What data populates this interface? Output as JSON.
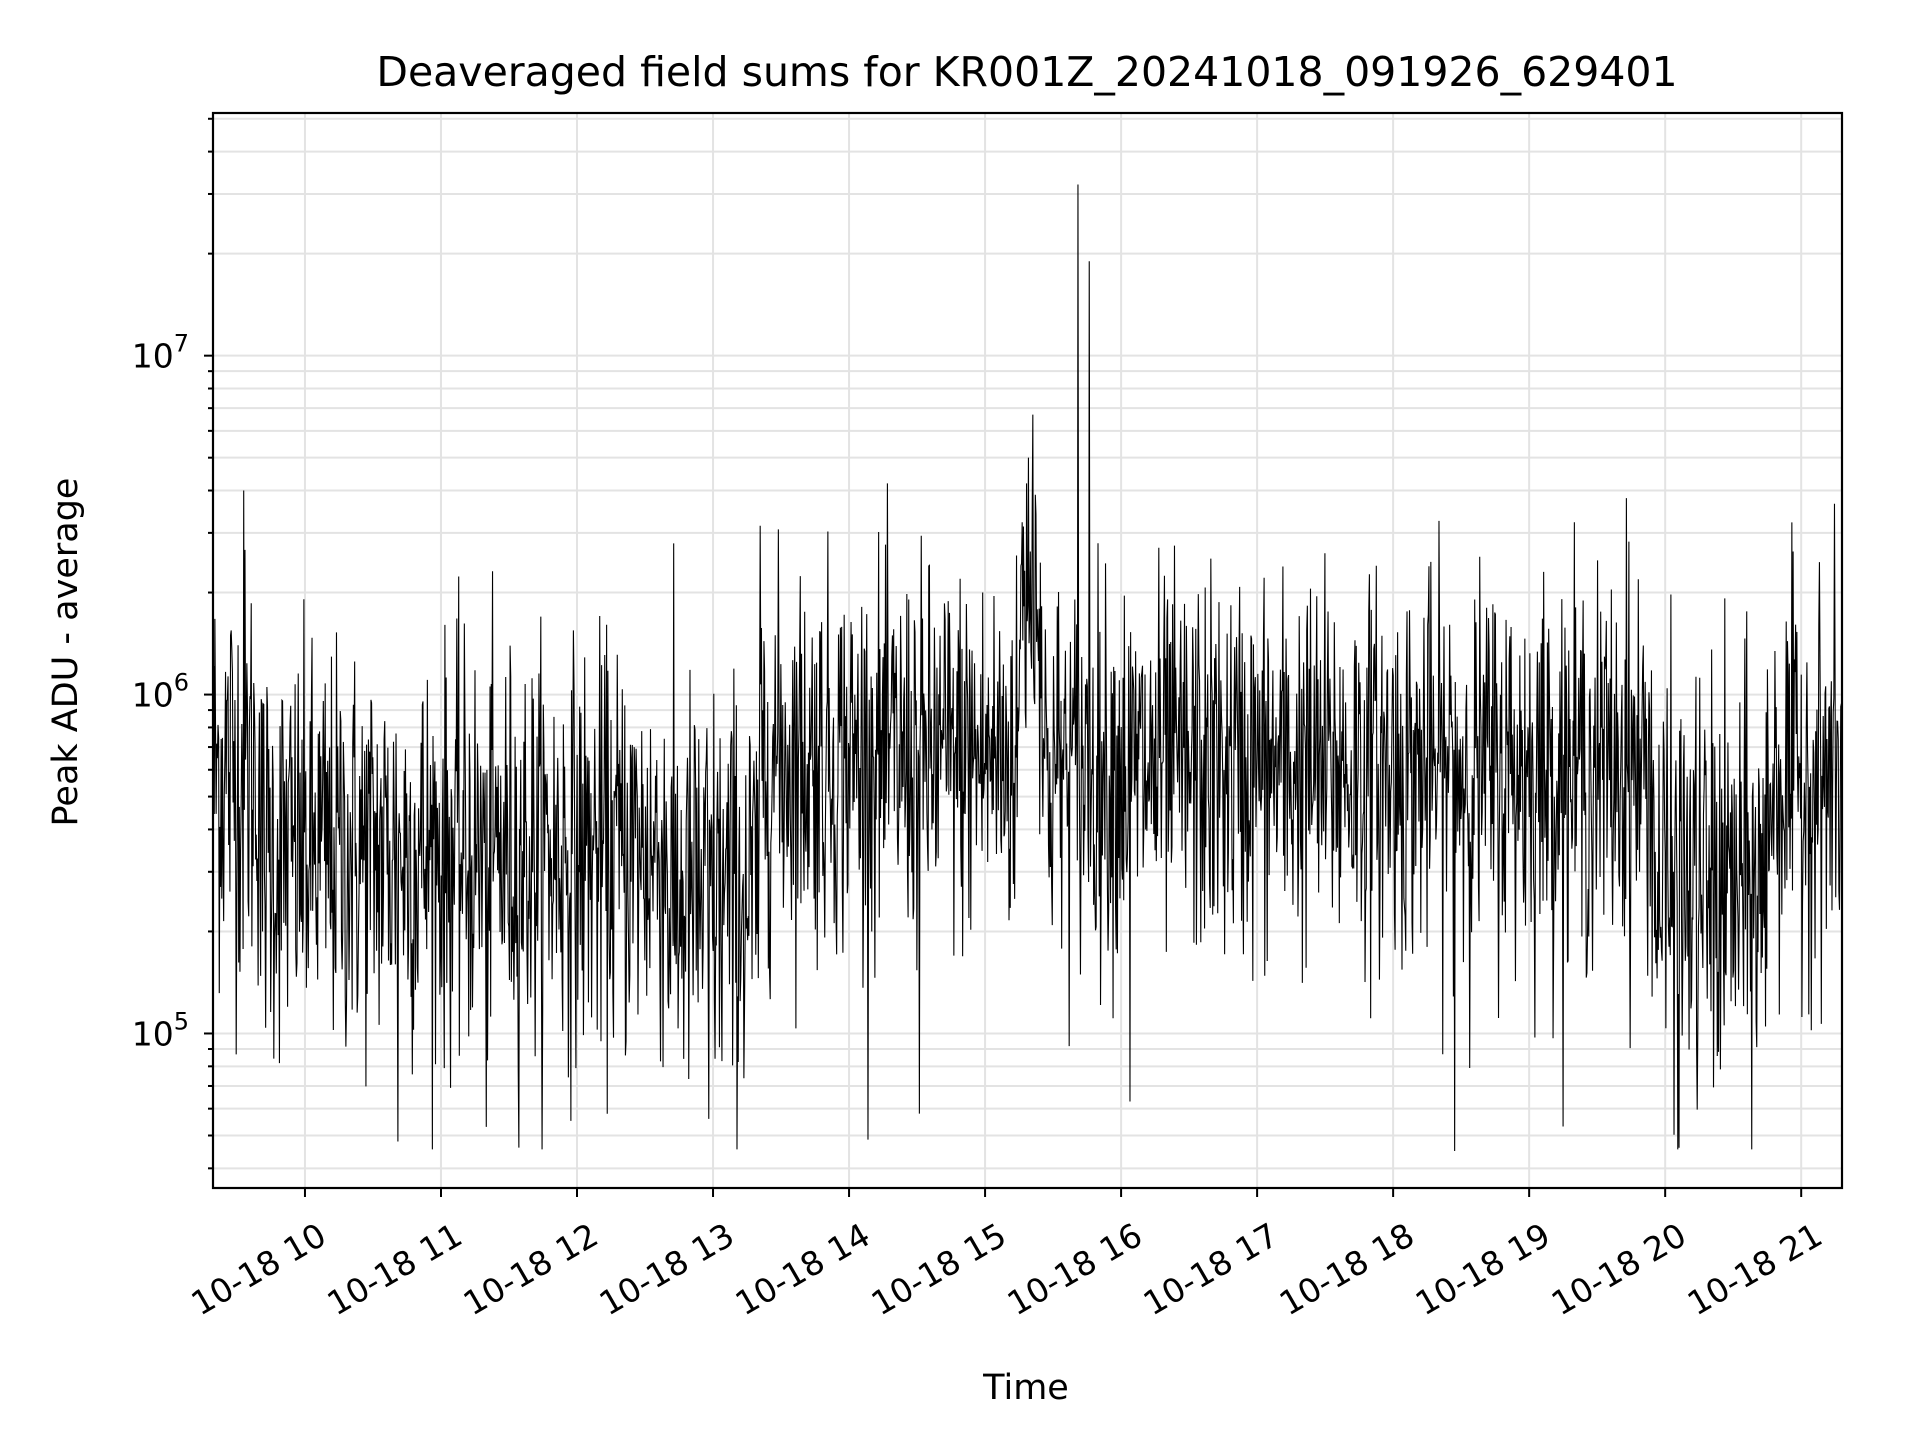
{
  "chart_data": {
    "type": "line",
    "title": "Deaveraged field sums for KR001Z_20241018_091926_629401",
    "xlabel": "Time",
    "ylabel": "Peak ADU - average",
    "xaxis": {
      "type": "time",
      "range": [
        "2024-10-18T09:19:26",
        "2024-10-18T21:18:00"
      ],
      "ticks": [
        {
          "value": "2024-10-18T10:00",
          "label": "10-18 10"
        },
        {
          "value": "2024-10-18T11:00",
          "label": "10-18 11"
        },
        {
          "value": "2024-10-18T12:00",
          "label": "10-18 12"
        },
        {
          "value": "2024-10-18T13:00",
          "label": "10-18 13"
        },
        {
          "value": "2024-10-18T14:00",
          "label": "10-18 14"
        },
        {
          "value": "2024-10-18T15:00",
          "label": "10-18 15"
        },
        {
          "value": "2024-10-18T16:00",
          "label": "10-18 16"
        },
        {
          "value": "2024-10-18T17:00",
          "label": "10-18 17"
        },
        {
          "value": "2024-10-18T18:00",
          "label": "10-18 18"
        },
        {
          "value": "2024-10-18T19:00",
          "label": "10-18 19"
        },
        {
          "value": "2024-10-18T20:00",
          "label": "10-18 20"
        },
        {
          "value": "2024-10-18T21:00",
          "label": "10-18 21"
        }
      ]
    },
    "yaxis": {
      "type": "log",
      "range": [
        35000,
        52000000
      ],
      "ticks": [
        {
          "value": 100000,
          "base": "10",
          "exp": "5"
        },
        {
          "value": 1000000,
          "base": "10",
          "exp": "6"
        },
        {
          "value": 10000000,
          "base": "10",
          "exp": "7"
        }
      ]
    },
    "grid": true,
    "series_color": "#000000",
    "series": [
      {
        "values_note": "",
        "segments": [
          {
            "start": "2024-10-18T09:19:26",
            "end": "2024-10-18T09:40",
            "median": 600000,
            "spread": 0.32
          },
          {
            "start": "2024-10-18T09:40",
            "end": "2024-10-18T12:40",
            "median": 340000,
            "spread": 0.3
          },
          {
            "start": "2024-10-18T12:40",
            "end": "2024-10-18T13:20",
            "median": 250000,
            "spread": 0.32
          },
          {
            "start": "2024-10-18T13:20",
            "end": "2024-10-18T14:20",
            "median": 650000,
            "spread": 0.28
          },
          {
            "start": "2024-10-18T14:20",
            "end": "2024-10-18T15:15",
            "median": 650000,
            "spread": 0.28
          },
          {
            "start": "2024-10-18T15:15",
            "end": "2024-10-18T15:25",
            "median": 2000000,
            "spread": 0.25
          },
          {
            "start": "2024-10-18T15:25",
            "end": "2024-10-18T19:55",
            "median": 600000,
            "spread": 0.28
          },
          {
            "start": "2024-10-18T19:55",
            "end": "2024-10-18T20:45",
            "median": 260000,
            "spread": 0.32
          },
          {
            "start": "2024-10-18T20:45",
            "end": "2024-10-18T21:18",
            "median": 560000,
            "spread": 0.28
          }
        ],
        "peaks": [
          {
            "x": "2024-10-18T09:33",
            "y": 4000000
          },
          {
            "x": "2024-10-18T10:41",
            "y": 48000
          },
          {
            "x": "2024-10-18T11:20",
            "y": 53000
          },
          {
            "x": "2024-10-18T12:58",
            "y": 56000
          },
          {
            "x": "2024-10-18T14:31",
            "y": 58000
          },
          {
            "x": "2024-10-18T15:19",
            "y": 5000000
          },
          {
            "x": "2024-10-18T15:21",
            "y": 6700000
          },
          {
            "x": "2024-10-18T15:41",
            "y": 32000000
          },
          {
            "x": "2024-10-18T15:46",
            "y": 19000000
          },
          {
            "x": "2024-10-18T16:04",
            "y": 63000
          },
          {
            "x": "2024-10-18T18:27",
            "y": 45000
          },
          {
            "x": "2024-10-18T19:43",
            "y": 3800000
          },
          {
            "x": "2024-10-18T20:06",
            "y": 46000
          }
        ]
      }
    ]
  }
}
